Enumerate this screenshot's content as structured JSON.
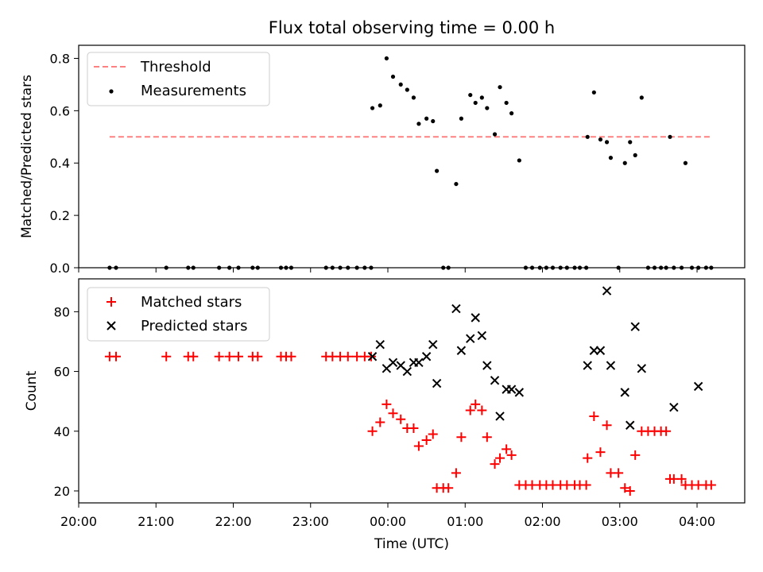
{
  "chart_data": [
    {
      "type": "scatter",
      "title": "Flux total observing time = 0.00 h",
      "xlabel": "",
      "ylabel": "Matched/Predicted stars",
      "xlim": [
        "20:00",
        "04:37"
      ],
      "ylim": [
        0,
        0.85
      ],
      "yticks": [
        0.0,
        0.2,
        0.4,
        0.6,
        0.8
      ],
      "ytick_labels": [
        "0.0",
        "0.2",
        "0.4",
        "0.6",
        "0.8"
      ],
      "legend": {
        "position": "top-left",
        "entries": [
          "Threshold",
          "Measurements"
        ]
      },
      "series": [
        {
          "name": "Threshold",
          "kind": "dashed-line",
          "color": "#ff8080",
          "x": [
            "20:24",
            "04:11"
          ],
          "y": [
            0.5,
            0.5
          ]
        },
        {
          "name": "Measurements",
          "kind": "dots",
          "color": "#000000",
          "x": [
            "20:24",
            "20:29",
            "21:08",
            "21:25",
            "21:29",
            "21:49",
            "21:57",
            "22:04",
            "22:15",
            "22:19",
            "22:37",
            "22:41",
            "22:45",
            "23:12",
            "23:17",
            "23:23",
            "23:29",
            "23:36",
            "23:42",
            "23:47",
            "23:48",
            "23:54",
            "23:59",
            "00:04",
            "00:10",
            "00:15",
            "00:20",
            "00:24",
            "00:30",
            "00:35",
            "00:38",
            "00:43",
            "00:47",
            "00:53",
            "00:57",
            "01:04",
            "01:08",
            "01:13",
            "01:17",
            "01:23",
            "01:27",
            "01:32",
            "01:36",
            "01:42",
            "01:47",
            "01:52",
            "01:58",
            "02:03",
            "02:08",
            "02:14",
            "02:19",
            "02:25",
            "02:29",
            "02:34",
            "02:35",
            "02:40",
            "02:45",
            "02:50",
            "02:53",
            "02:59",
            "03:04",
            "03:08",
            "03:12",
            "03:17",
            "03:22",
            "03:27",
            "03:32",
            "03:36",
            "03:39",
            "03:42",
            "03:48",
            "03:51",
            "03:56",
            "04:01",
            "04:07",
            "04:11"
          ],
          "y": [
            0,
            0,
            0,
            0,
            0,
            0,
            0,
            0,
            0,
            0,
            0,
            0,
            0,
            0,
            0,
            0,
            0,
            0,
            0,
            0,
            0.61,
            0.62,
            0.8,
            0.73,
            0.7,
            0.68,
            0.65,
            0.55,
            0.57,
            0.56,
            0.37,
            0,
            0,
            0.32,
            0.57,
            0.66,
            0.63,
            0.65,
            0.61,
            0.51,
            0.69,
            0.63,
            0.59,
            0.41,
            0,
            0,
            0,
            0,
            0,
            0,
            0,
            0,
            0,
            0,
            0.5,
            0.67,
            0.49,
            0.48,
            0.42,
            0,
            0.4,
            0.48,
            0.43,
            0.65,
            0,
            0,
            0,
            0,
            0.5,
            0,
            0,
            0.4,
            0,
            0,
            0,
            0
          ]
        }
      ]
    },
    {
      "type": "scatter",
      "title": "",
      "xlabel": "Time (UTC)",
      "ylabel": "Count",
      "xlim": [
        "20:00",
        "04:37"
      ],
      "ylim": [
        16,
        91
      ],
      "yticks": [
        20,
        40,
        60,
        80
      ],
      "ytick_labels": [
        "20",
        "40",
        "60",
        "80"
      ],
      "xticks": [
        "20:00",
        "21:00",
        "22:00",
        "23:00",
        "00:00",
        "01:00",
        "02:00",
        "03:00",
        "04:00"
      ],
      "xtick_labels": [
        "20:00",
        "21:00",
        "22:00",
        "23:00",
        "00:00",
        "01:00",
        "02:00",
        "03:00",
        "04:00"
      ],
      "legend": {
        "position": "top-left",
        "entries": [
          "Matched stars",
          "Predicted stars"
        ]
      },
      "series": [
        {
          "name": "Matched stars",
          "kind": "plus",
          "color": "#ff0000",
          "x": [
            "20:24",
            "20:29",
            "21:08",
            "21:25",
            "21:29",
            "21:49",
            "21:57",
            "22:04",
            "22:15",
            "22:19",
            "22:37",
            "22:41",
            "22:45",
            "23:12",
            "23:17",
            "23:23",
            "23:29",
            "23:36",
            "23:42",
            "23:47",
            "23:48",
            "23:54",
            "23:59",
            "00:04",
            "00:10",
            "00:15",
            "00:20",
            "00:24",
            "00:30",
            "00:35",
            "00:38",
            "00:43",
            "00:47",
            "00:53",
            "00:57",
            "01:04",
            "01:08",
            "01:13",
            "01:17",
            "01:23",
            "01:27",
            "01:32",
            "01:36",
            "01:42",
            "01:47",
            "01:52",
            "01:58",
            "02:03",
            "02:08",
            "02:14",
            "02:19",
            "02:25",
            "02:29",
            "02:34",
            "02:35",
            "02:40",
            "02:45",
            "02:50",
            "02:53",
            "02:59",
            "03:04",
            "03:08",
            "03:12",
            "03:17",
            "03:22",
            "03:27",
            "03:32",
            "03:36",
            "03:39",
            "03:42",
            "03:48",
            "03:51",
            "03:56",
            "04:01",
            "04:07",
            "04:11"
          ],
          "y": [
            65,
            65,
            65,
            65,
            65,
            65,
            65,
            65,
            65,
            65,
            65,
            65,
            65,
            65,
            65,
            65,
            65,
            65,
            65,
            65,
            40,
            43,
            49,
            46,
            44,
            41,
            41,
            35,
            37,
            39,
            21,
            21,
            21,
            26,
            38,
            47,
            49,
            47,
            38,
            29,
            31,
            34,
            32,
            22,
            22,
            22,
            22,
            22,
            22,
            22,
            22,
            22,
            22,
            22,
            31,
            45,
            33,
            42,
            26,
            26,
            21,
            20,
            32,
            40,
            40,
            40,
            40,
            40,
            24,
            24,
            24,
            22,
            22,
            22,
            22,
            22
          ]
        },
        {
          "name": "Predicted stars",
          "kind": "x",
          "color": "#000000",
          "x": [
            "23:48",
            "23:54",
            "23:59",
            "00:04",
            "00:10",
            "00:15",
            "00:20",
            "00:24",
            "00:30",
            "00:35",
            "00:38",
            "00:53",
            "00:57",
            "01:04",
            "01:08",
            "01:13",
            "01:17",
            "01:23",
            "01:27",
            "01:32",
            "01:36",
            "01:42",
            "02:35",
            "02:40",
            "02:45",
            "02:50",
            "02:53",
            "03:04",
            "03:08",
            "03:12",
            "03:17",
            "03:42",
            "04:01"
          ],
          "y": [
            65,
            69,
            61,
            63,
            62,
            60,
            63,
            63,
            65,
            69,
            56,
            81,
            67,
            71,
            78,
            72,
            62,
            57,
            45,
            54,
            54,
            53,
            62,
            67,
            67,
            87,
            62,
            53,
            42,
            75,
            61,
            48,
            55
          ]
        }
      ]
    }
  ]
}
